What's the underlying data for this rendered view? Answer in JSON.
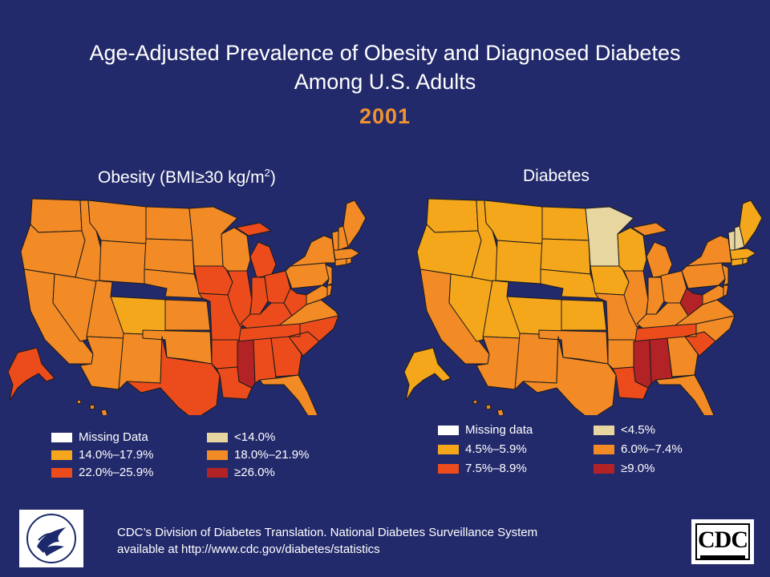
{
  "title_line1": "Age-Adjusted Prevalence of Obesity and Diagnosed Diabetes",
  "title_line2": "Among U.S. Adults",
  "year": "2001",
  "obesity": {
    "title_main": "Obesity (BMI≥30 kg/m",
    "title_sup": "2",
    "title_close": ")",
    "legend": [
      {
        "label": "Missing Data",
        "color": "#ffffff"
      },
      {
        "label": "<14.0%",
        "color": "#e8d6a0"
      },
      {
        "label": "14.0%–17.9%",
        "color": "#f5a71c"
      },
      {
        "label": "18.0%–21.9%",
        "color": "#f28a25"
      },
      {
        "label": "22.0%–25.9%",
        "color": "#ec4c1c"
      },
      {
        "label": "≥26.0%",
        "color": "#b32326"
      }
    ]
  },
  "diabetes": {
    "title": "Diabetes",
    "legend": [
      {
        "label": "Missing data",
        "color": "#ffffff"
      },
      {
        "label": "<4.5%",
        "color": "#e8d6a0"
      },
      {
        "label": "4.5%–5.9%",
        "color": "#f5a71c"
      },
      {
        "label": "6.0%–7.4%",
        "color": "#f28a25"
      },
      {
        "label": "7.5%–8.9%",
        "color": "#ec4c1c"
      },
      {
        "label": "≥9.0%",
        "color": "#b32326"
      }
    ]
  },
  "footer_line1": "CDC’s Division of Diabetes Translation. National Diabetes Surveillance System",
  "footer_line2": "available at http://www.cdc.gov/diabetes/statistics",
  "cdc_logo_text": "CDC",
  "colors": {
    "background": "#232a6b",
    "year": "#f0922f",
    "border": "#1b1b1b"
  }
}
